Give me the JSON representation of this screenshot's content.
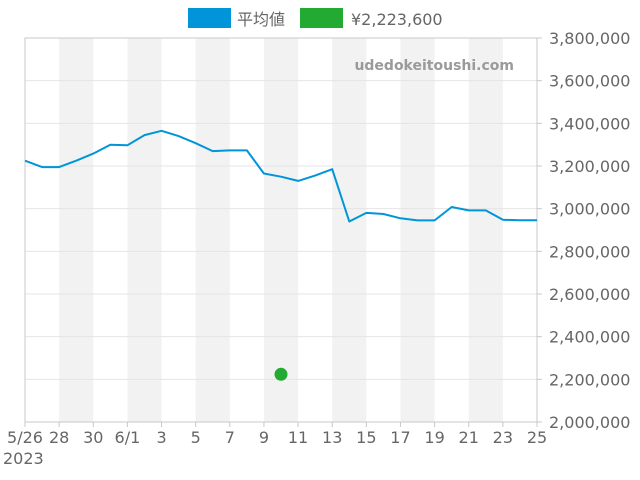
{
  "chart_data": {
    "type": "line",
    "watermark": "udedokeitoushi.com",
    "legend_placement": "top",
    "legend": [
      {
        "label": "平均値",
        "color": "#0095d9"
      },
      {
        "label": "¥2,223,600",
        "color": "#22aa33"
      }
    ],
    "x_tick_labels": [
      "5/26",
      "28",
      "30",
      "6/1",
      "3",
      "5",
      "7",
      "9",
      "11",
      "13",
      "15",
      "17",
      "19",
      "21",
      "23",
      "25"
    ],
    "x_year_label": "2023",
    "y_tick_labels": [
      "2,000,000",
      "2,200,000",
      "2,400,000",
      "2,600,000",
      "2,800,000",
      "3,000,000",
      "3,200,000",
      "3,400,000",
      "3,600,000",
      "3,800,000"
    ],
    "ylim": [
      2000000,
      3800000
    ],
    "x_range_days": [
      0,
      30
    ],
    "grid": true,
    "alternating_stripes": true,
    "series": [
      {
        "name": "平均値",
        "color": "#0095d9",
        "x": [
          0,
          1,
          2,
          3,
          4,
          5,
          6,
          7,
          8,
          9,
          10,
          11,
          12,
          13,
          14,
          15,
          16,
          17,
          18,
          19,
          20,
          21,
          22,
          23,
          24,
          25,
          26,
          27,
          28,
          29,
          30
        ],
        "values": [
          3225000,
          3195000,
          3195000,
          3225000,
          3258000,
          3300000,
          3297000,
          3345000,
          3365000,
          3340000,
          3307000,
          3270000,
          3273000,
          3273000,
          3165000,
          3150000,
          3130000,
          3155000,
          3185000,
          2940000,
          2980000,
          2975000,
          2955000,
          2945000,
          2945000,
          3008000,
          2992000,
          2992000,
          2948000,
          2946000,
          2946000
        ]
      },
      {
        "name": "¥2,223,600",
        "color": "#22aa33",
        "type": "point",
        "x": [
          15
        ],
        "values": [
          2223600
        ]
      }
    ]
  }
}
